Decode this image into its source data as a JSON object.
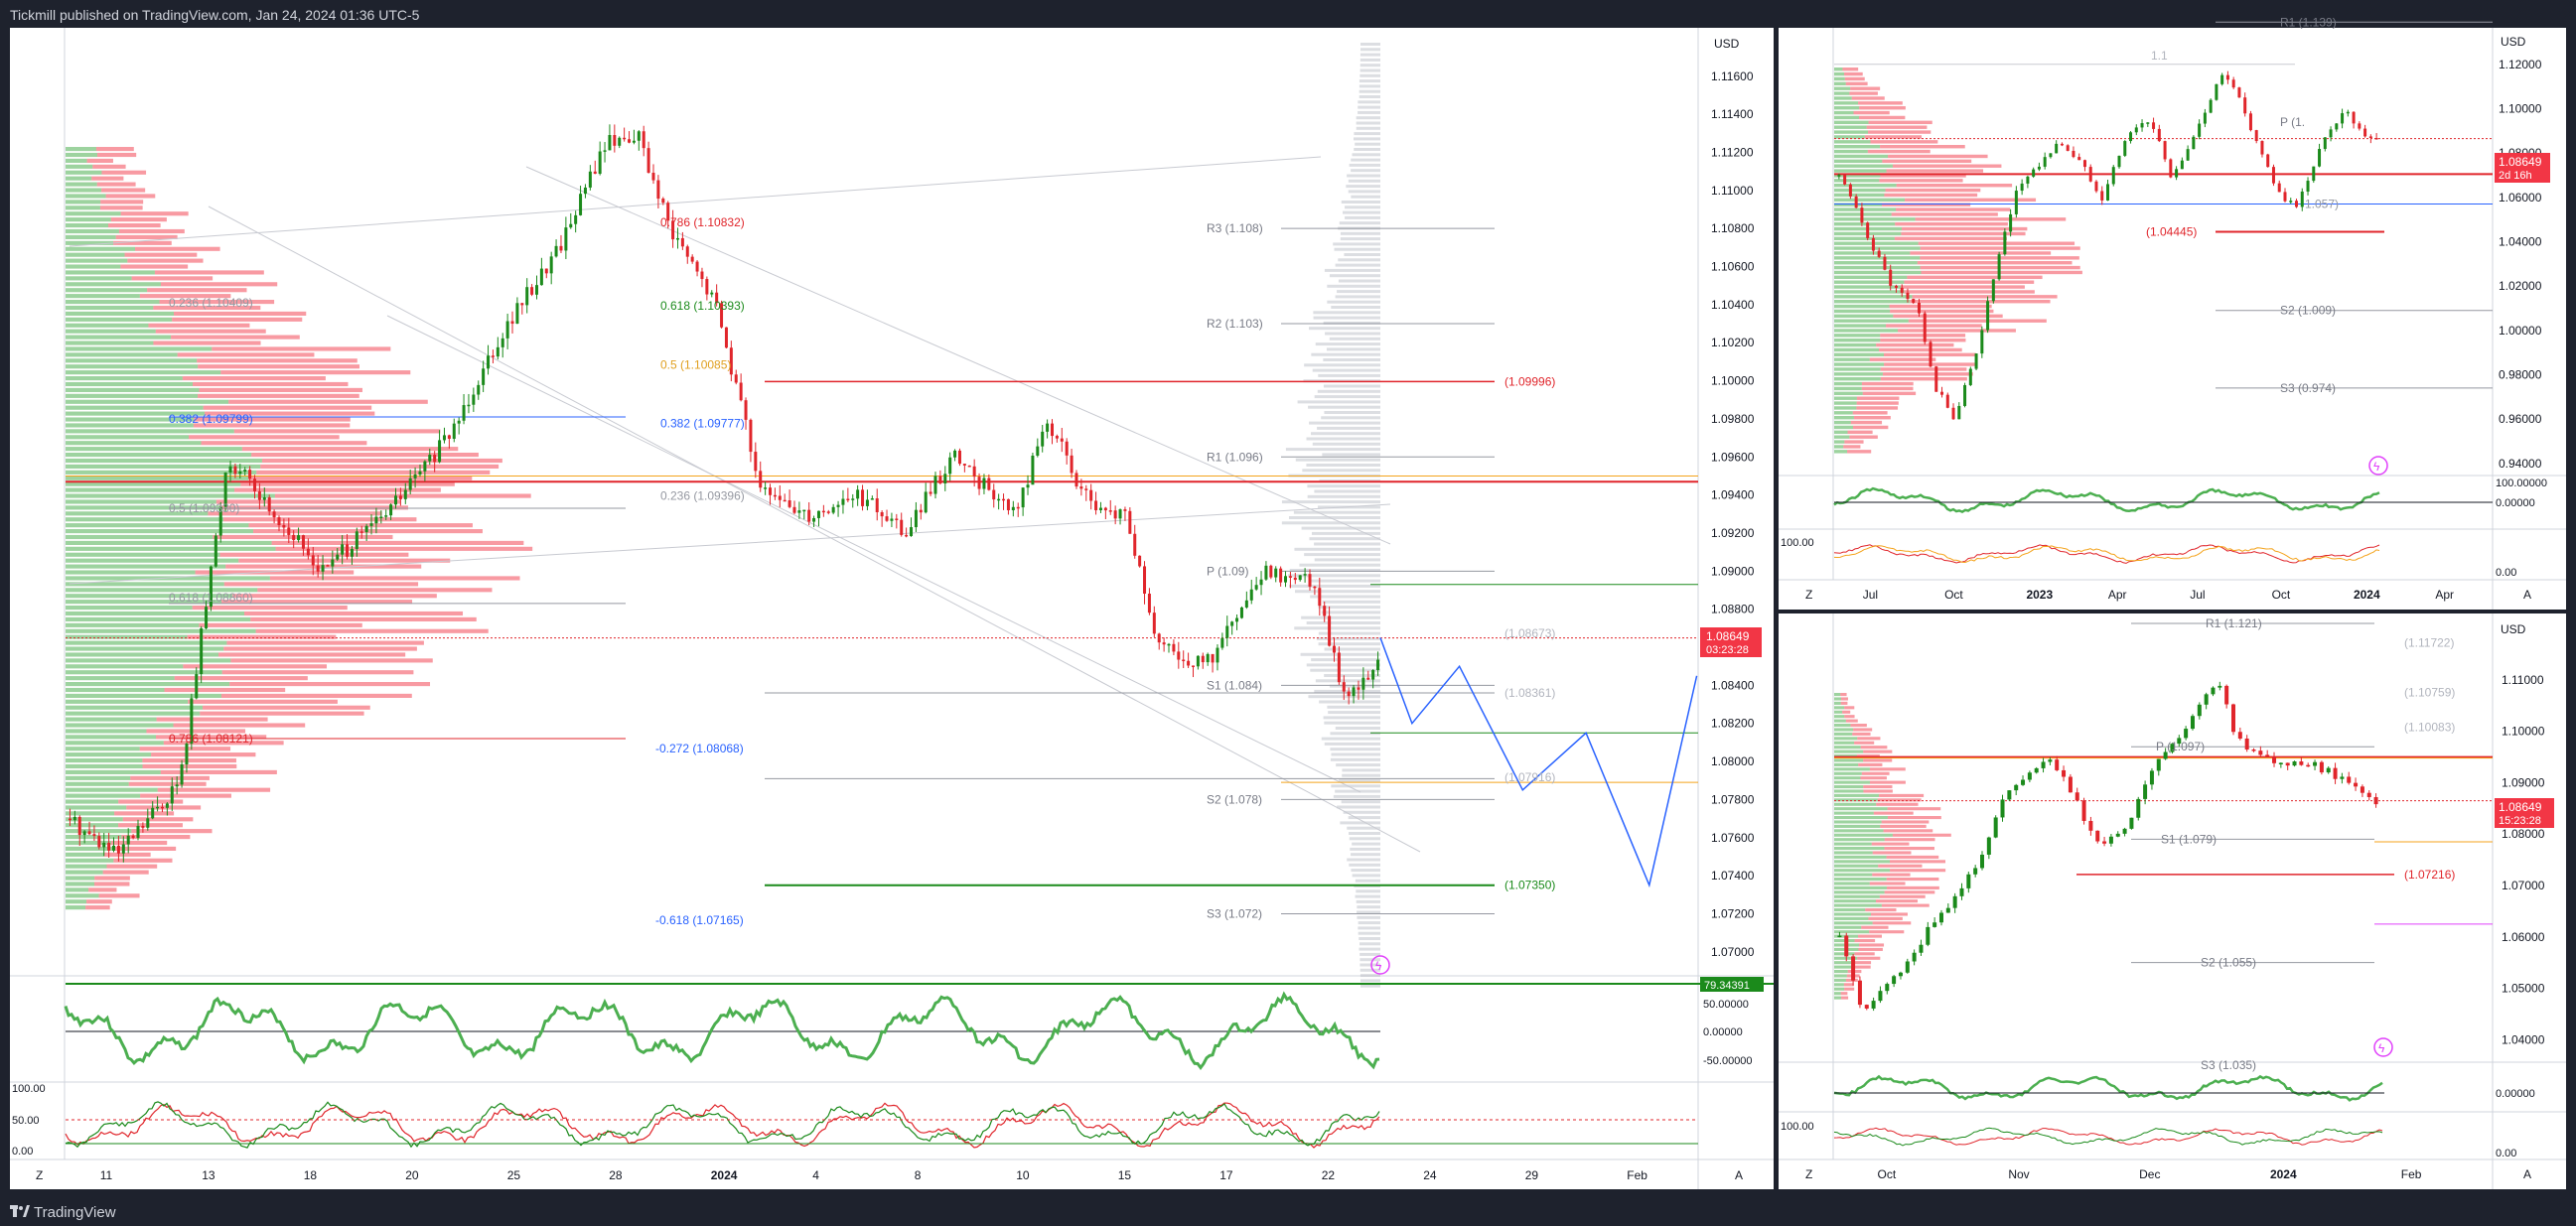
{
  "header": {
    "published_text": "Tickmill published on TradingView.com, Jan 24, 2024 01:36 UTC-5"
  },
  "footer": {
    "brand": "TradingView"
  },
  "colors": {
    "bull": "#089981",
    "candle_up": "#1b8a1b",
    "candle_down": "#e0252b",
    "red_line": "#e0252b",
    "green_line": "#1b8a1b",
    "blue": "#2962ff",
    "orange": "#f4a31b",
    "magenta": "#e040fb"
  },
  "main_chart": {
    "currency": "USD",
    "price_ticks": [
      "1.11600",
      "1.11400",
      "1.11200",
      "1.11000",
      "1.10800",
      "1.10600",
      "1.10400",
      "1.10200",
      "1.10000",
      "1.09800",
      "1.09600",
      "1.09400",
      "1.09200",
      "1.09000",
      "1.08800",
      "1.08600",
      "1.08400",
      "1.08200",
      "1.08000",
      "1.07800",
      "1.07600",
      "1.07400",
      "1.07200",
      "1.07000"
    ],
    "last_price": "1.08649",
    "countdown": "03:23:28",
    "date_ticks": [
      "11",
      "13",
      "18",
      "20",
      "25",
      "28",
      "2024",
      "4",
      "8",
      "10",
      "15",
      "17",
      "22",
      "24",
      "29",
      "Feb"
    ],
    "axis_letters": {
      "left": "Z",
      "right": "A"
    },
    "fib_left": [
      "0.236 (1.10409)",
      "0.382 (1.09799)",
      "0.5 (1.09330)",
      "0.618 (1.08860)",
      "0.786 (1.08121)"
    ],
    "fib_right": [
      "0.786 (1.10832)",
      "0.618 (1.10393)",
      "0.5 (1.10085)",
      "0.382 (1.09777)",
      "0.236 (1.09396)"
    ],
    "fib_ext": [
      "-0.272 (1.08068)",
      "-0.618 (1.07165)"
    ],
    "pivots": [
      "R3 (1.108)",
      "R2 (1.103)",
      "R1 (1.096)",
      "P (1.09)",
      "S1 (1.084)",
      "S2 (1.078)",
      "S3 (1.072)"
    ],
    "levels": [
      "(1.09996)",
      "(1.08673)",
      "(1.08361)",
      "(1.07916)",
      "(1.07350)"
    ],
    "osc1": {
      "ticks": [
        "50.00000",
        "0.00000",
        "-50.00000"
      ],
      "value": "79.34391"
    },
    "osc2": {
      "ticks": [
        "100.00",
        "50.00",
        "0.00"
      ]
    }
  },
  "weekly_chart": {
    "currency": "USD",
    "price_ticks": [
      "1.12000",
      "1.10000",
      "1.08000",
      "1.06000",
      "1.04000",
      "1.02000",
      "1.00000",
      "0.98000",
      "0.96000",
      "0.94000"
    ],
    "last_price": "1.08649",
    "countdown": "2d 16h",
    "date_ticks": [
      "Jul",
      "Oct",
      "2023",
      "Apr",
      "Jul",
      "Oct",
      "2024",
      "Apr"
    ],
    "pivots": [
      "R1 (1.139)",
      "P (1.",
      "S2 (1.009)",
      "S3 (0.974)"
    ],
    "levels": [
      "(1.04445)",
      "1.057)",
      "1.1"
    ],
    "osc1": {
      "ticks": [
        "100.00000",
        "0.00000"
      ]
    },
    "osc2": {
      "ticks": [
        "100.00",
        "0.00"
      ]
    },
    "axis_letters": {
      "left": "Z",
      "right": "A"
    }
  },
  "daily_chart": {
    "currency": "USD",
    "price_ticks": [
      "1.11000",
      "1.10000",
      "1.09000",
      "1.08000",
      "1.07000",
      "1.06000",
      "1.05000",
      "1.04000"
    ],
    "last_price": "1.08649",
    "countdown": "15:23:28",
    "date_ticks": [
      "Oct",
      "Nov",
      "Dec",
      "2024",
      "Feb"
    ],
    "pivots": [
      "R1 (1.121)",
      "P (1.097)",
      "S1 (1.079)",
      "S2 (1.055)",
      "S3 (1.035)"
    ],
    "levels": [
      "(1.11722)",
      "(1.10759)",
      "(1.10083)",
      "(1.07216)"
    ],
    "osc1": {
      "ticks": [
        "0.00000"
      ]
    },
    "osc2": {
      "ticks": [
        "100.00",
        "0.00"
      ]
    },
    "axis_letters": {
      "left": "Z",
      "right": "A"
    }
  },
  "chart_data": [
    {
      "type": "candlestick",
      "title": "",
      "timeframe": "1H",
      "x_ticks": [
        "11",
        "13",
        "18",
        "20",
        "25",
        "28",
        "2024",
        "4",
        "8",
        "10",
        "15",
        "17",
        "22",
        "24",
        "29",
        "Feb"
      ],
      "ylim": [
        1.069,
        1.1175
      ],
      "last": 1.08649,
      "path": [
        [
          0,
          1.077
        ],
        [
          3,
          1.075
        ],
        [
          7,
          1.079
        ],
        [
          10,
          1.096
        ],
        [
          13,
          1.093
        ],
        [
          16,
          1.09
        ],
        [
          20,
          1.093
        ],
        [
          24,
          1.097
        ],
        [
          27,
          1.102
        ],
        [
          31,
          1.107
        ],
        [
          34,
          1.1125
        ],
        [
          36,
          1.113
        ],
        [
          38,
          1.108
        ],
        [
          41,
          1.104
        ],
        [
          44,
          1.094
        ],
        [
          47,
          1.093
        ],
        [
          50,
          1.094
        ],
        [
          53,
          1.092
        ],
        [
          56,
          1.096
        ],
        [
          60,
          1.093
        ],
        [
          62,
          1.098
        ],
        [
          65,
          1.093
        ],
        [
          67,
          1.093
        ],
        [
          69,
          1.086
        ],
        [
          72,
          1.085
        ],
        [
          76,
          1.09
        ],
        [
          79,
          1.0895
        ],
        [
          81,
          1.083
        ],
        [
          83,
          1.0855
        ]
      ],
      "projection": [
        [
          83,
          1.0865
        ],
        [
          85,
          1.082
        ],
        [
          88,
          1.085
        ],
        [
          92,
          1.0785
        ],
        [
          96,
          1.0815
        ],
        [
          100,
          1.0735
        ],
        [
          103,
          1.0845
        ]
      ]
    },
    {
      "type": "candlestick",
      "title": "",
      "timeframe": "1W",
      "x_ticks": [
        "Jul",
        "Oct",
        "2023",
        "Apr",
        "Jul",
        "Oct",
        "2024",
        "Apr"
      ],
      "ylim": [
        0.935,
        1.1275
      ],
      "last": 1.08649,
      "path": [
        [
          0,
          1.07
        ],
        [
          5,
          1.045
        ],
        [
          10,
          1.02
        ],
        [
          15,
          1.01
        ],
        [
          18,
          0.975
        ],
        [
          22,
          0.96
        ],
        [
          26,
          0.99
        ],
        [
          30,
          1.03
        ],
        [
          34,
          1.065
        ],
        [
          38,
          1.075
        ],
        [
          42,
          1.085
        ],
        [
          46,
          1.075
        ],
        [
          50,
          1.06
        ],
        [
          54,
          1.085
        ],
        [
          58,
          1.095
        ],
        [
          60,
          1.09
        ],
        [
          63,
          1.07
        ],
        [
          66,
          1.08
        ],
        [
          69,
          1.095
        ],
        [
          72,
          1.115
        ],
        [
          75,
          1.11
        ],
        [
          78,
          1.09
        ],
        [
          81,
          1.075
        ],
        [
          84,
          1.06
        ],
        [
          87,
          1.055
        ],
        [
          90,
          1.075
        ],
        [
          93,
          1.09
        ],
        [
          96,
          1.1
        ],
        [
          99,
          1.09
        ],
        [
          102,
          1.0865
        ]
      ]
    },
    {
      "type": "candlestick",
      "title": "",
      "timeframe": "1D",
      "x_ticks": [
        "Oct",
        "Nov",
        "Dec",
        "2024",
        "Feb"
      ],
      "ylim": [
        1.036,
        1.121
      ],
      "last": 1.08649,
      "path": [
        [
          0,
          1.06
        ],
        [
          4,
          1.045
        ],
        [
          8,
          1.05
        ],
        [
          12,
          1.055
        ],
        [
          16,
          1.063
        ],
        [
          20,
          1.068
        ],
        [
          24,
          1.075
        ],
        [
          28,
          1.087
        ],
        [
          32,
          1.092
        ],
        [
          36,
          1.095
        ],
        [
          40,
          1.088
        ],
        [
          43,
          1.08
        ],
        [
          46,
          1.078
        ],
        [
          50,
          1.083
        ],
        [
          54,
          1.093
        ],
        [
          58,
          1.098
        ],
        [
          62,
          1.106
        ],
        [
          65,
          1.11
        ],
        [
          68,
          1.099
        ],
        [
          72,
          1.095
        ],
        [
          76,
          1.093
        ],
        [
          80,
          1.094
        ],
        [
          84,
          1.092
        ],
        [
          88,
          1.09
        ],
        [
          92,
          1.0865
        ]
      ]
    }
  ]
}
